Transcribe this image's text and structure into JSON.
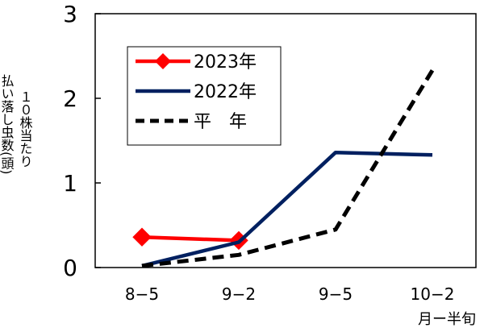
{
  "chart_data": {
    "type": "line",
    "categories": [
      "8-5",
      "9-2",
      "9-5",
      "10-2"
    ],
    "xlabel": "月ー半旬",
    "ylabel_col1": "払い落し虫数(頭)",
    "ylabel_col2": "１０株当たり",
    "ylim": [
      0,
      3
    ],
    "yticks": [
      0,
      1,
      2,
      3
    ],
    "grid": false,
    "legend_position": "top-left",
    "series": [
      {
        "name": "2023年",
        "values": [
          0.36,
          0.32,
          null,
          null
        ],
        "color": "#ff0000",
        "style": "solid-diamond"
      },
      {
        "name": "2022年",
        "values": [
          0.02,
          0.3,
          1.36,
          1.33
        ],
        "color": "#002060",
        "style": "solid"
      },
      {
        "name": "平　年",
        "values": [
          0.02,
          0.15,
          0.45,
          2.33
        ],
        "color": "#000000",
        "style": "dashed"
      }
    ]
  }
}
